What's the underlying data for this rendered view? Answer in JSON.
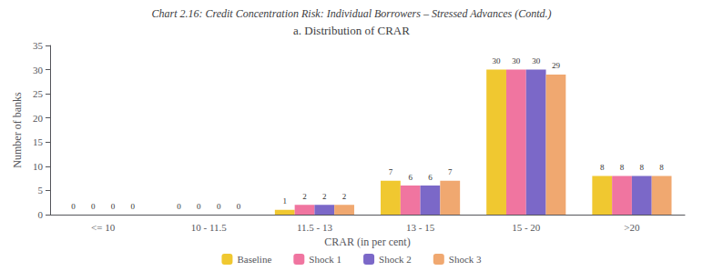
{
  "chart_data": {
    "type": "bar",
    "title": "Chart 2.16: Credit Concentration Risk: Individual Borrowers – Stressed Advances (Contd.)",
    "subtitle": "a. Distribution of CRAR",
    "xlabel": "CRAR (in per cent)",
    "ylabel": "Number of banks",
    "categories": [
      "<= 10",
      "10 - 11.5",
      "11.5 - 13",
      "13 - 15",
      "15 - 20",
      ">20"
    ],
    "series": [
      {
        "name": "Baseline",
        "color": "#f0c830",
        "values": [
          0,
          0,
          1,
          7,
          30,
          8
        ]
      },
      {
        "name": "Shock 1",
        "color": "#f075a0",
        "values": [
          0,
          0,
          2,
          6,
          30,
          8
        ]
      },
      {
        "name": "Shock 2",
        "color": "#7b68c8",
        "values": [
          0,
          0,
          2,
          6,
          30,
          8
        ]
      },
      {
        "name": "Shock 3",
        "color": "#f0a870",
        "values": [
          0,
          0,
          2,
          7,
          29,
          8
        ]
      }
    ],
    "ylim": [
      0,
      35
    ],
    "yticks": [
      0,
      5,
      10,
      15,
      20,
      25,
      30,
      35
    ],
    "grid": false,
    "legend": "bottom",
    "data_labels": true
  }
}
